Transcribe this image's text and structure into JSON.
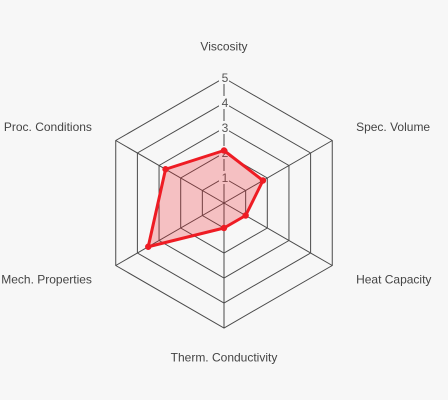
{
  "chart_data": {
    "type": "radar",
    "axes": [
      "Viscosity",
      "Spec. Volume",
      "Heat Capacity",
      "Therm. Conductivity",
      "Mech. Properties",
      "Proc. Conditions"
    ],
    "ticks": [
      "1",
      "2",
      "3",
      "4",
      "5"
    ],
    "range": [
      0,
      5
    ],
    "series": [
      {
        "values": [
          2.1,
          1.8,
          1.0,
          1.0,
          3.5,
          2.7
        ]
      }
    ],
    "colors": {
      "series_stroke": "#ee1c24",
      "series_fill": "rgba(238,28,36,0.25)",
      "grid": "#4a4a4a"
    },
    "legend": "none",
    "grid": true
  }
}
